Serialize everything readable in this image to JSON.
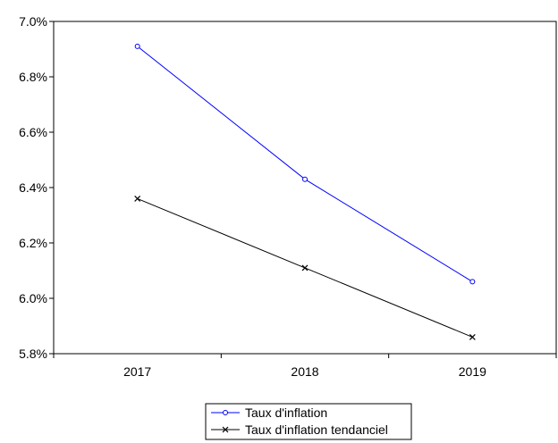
{
  "chart_data": {
    "type": "line",
    "title": "",
    "xlabel": "",
    "ylabel": "",
    "categories": [
      "2017",
      "2018",
      "2019"
    ],
    "y_ticks": [
      "5.8%",
      "6.0%",
      "6.2%",
      "6.4%",
      "6.6%",
      "6.8%",
      "7.0%"
    ],
    "ylim": [
      5.8,
      7.0
    ],
    "y_unit": "%",
    "grid": false,
    "legend_position": "bottom-center",
    "series": [
      {
        "name": "Taux d'inflation",
        "values": [
          6.91,
          6.43,
          6.06
        ],
        "color": "#0000ff",
        "marker": "circle"
      },
      {
        "name": "Taux d'inflation tendanciel",
        "values": [
          6.36,
          6.11,
          5.86
        ],
        "color": "#000000",
        "marker": "x"
      }
    ]
  }
}
